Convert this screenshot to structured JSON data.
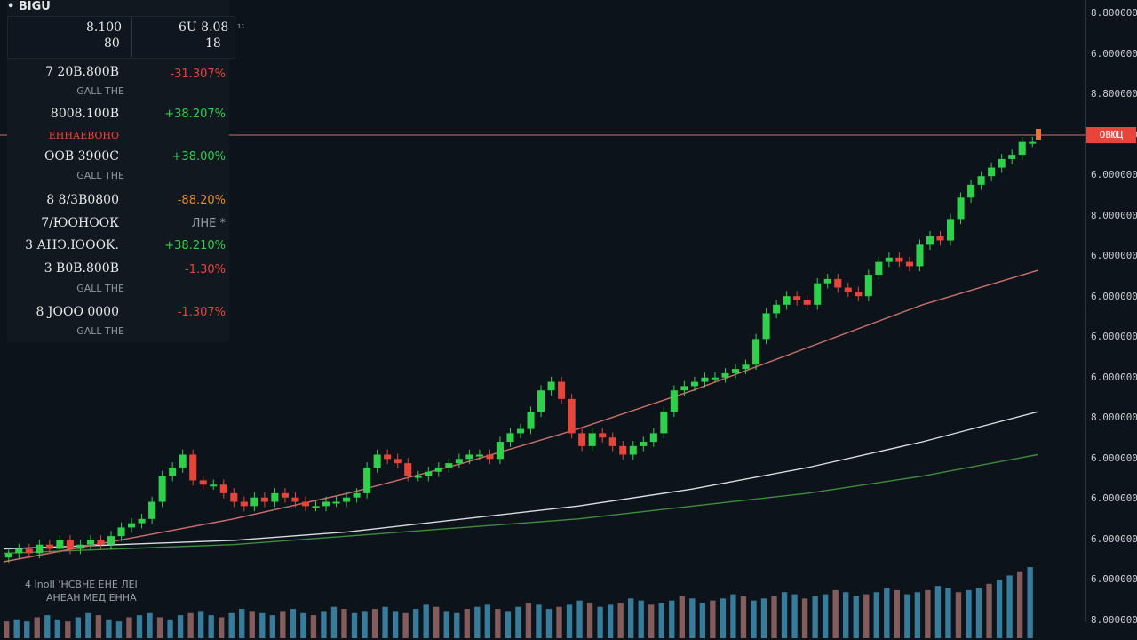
{
  "header": {
    "top_left": "• BIGU",
    "col1_a": "8.100",
    "col1_b": "80",
    "col2_a": "6U 8.08",
    "col2_b": "18",
    "marker": "¹¹"
  },
  "watchlist": [
    {
      "price": "7 20B.800B",
      "change": "-31.307%",
      "dir": "neg",
      "sub": "GALL ТНЕ"
    },
    {
      "price": "8008.100B",
      "change": "+38.207%",
      "dir": "pos",
      "sub": ""
    },
    {
      "price": "",
      "change": "",
      "dir": "neg",
      "sub": "",
      "label": "ЕННАЕВОНО"
    },
    {
      "price": "OOB 3900C",
      "change": "+38.00%",
      "dir": "pos",
      "sub": "GALL ТНЕ"
    },
    {
      "price": "8 8/3B0800",
      "change": "-88.20%",
      "dir": "org",
      "sub": ""
    },
    {
      "price": "7/ЮОНООК",
      "change": "ЛНЕ *",
      "dir": "ghost",
      "sub": ""
    },
    {
      "price": "3 АНЭ.ЮООK.",
      "change": "+38.210%",
      "dir": "pos",
      "sub": ""
    },
    {
      "price": "3 B0B.800B",
      "change": "-1.30%",
      "dir": "neg",
      "sub": "GALL ТНЕ"
    },
    {
      "price": "8 ЈООО 0000",
      "change": "-1.307%",
      "dir": "neg",
      "sub": "GALL ТНЕ"
    }
  ],
  "annotation": {
    "line1": "4 ІnоII 'НСВНЕ ЕНЕ ЛЕI",
    "line2": "АНЕАН МЕД ЕННА"
  },
  "price_tag": "ОВЮЦ",
  "y_axis_labels": [
    "8.800000",
    "6.000000",
    "8.800000",
    "6.000000",
    "6.000000",
    "8.000000",
    "6.000000",
    "6.000000",
    "6.000000",
    "6.000000",
    "8.000000",
    "6.000000",
    "6.000000",
    "6.000000",
    "6.000000",
    "8.000000"
  ],
  "colors": {
    "background": "#0d131b",
    "up": "#2fd04b",
    "down": "#e8453a",
    "ma_fast": "#c9716a",
    "ma_mid": "#d9dde2",
    "ma_slow": "#3e8d3c",
    "volume": "#3f8fb0"
  },
  "chart_data": {
    "type": "candlestick",
    "title": "",
    "xlabel": "",
    "ylabel": "",
    "grid": false,
    "ylim": [
      0,
      100
    ],
    "close": [
      2,
      3,
      2,
      4,
      3,
      5,
      3,
      4,
      5,
      4,
      6,
      8,
      9,
      10,
      14,
      20,
      22,
      25,
      19,
      18,
      18,
      16,
      14,
      13,
      15,
      14,
      16,
      15,
      14,
      13,
      13,
      14,
      14,
      15,
      16,
      22,
      25,
      24,
      23,
      20,
      20,
      21,
      22,
      23,
      24,
      25,
      25,
      24,
      28,
      30,
      31,
      35,
      40,
      42,
      38,
      30,
      27,
      30,
      29,
      27,
      25,
      27,
      28,
      30,
      35,
      40,
      41,
      42,
      43,
      43,
      44,
      45,
      46,
      52,
      58,
      60,
      62,
      61,
      60,
      65,
      66,
      64,
      63,
      62,
      67,
      70,
      71,
      70,
      69,
      74,
      76,
      75,
      80,
      85,
      88,
      90,
      92,
      94,
      95,
      98,
      98
    ],
    "ma_fast": [
      0,
      5,
      10,
      16,
      23,
      31,
      40,
      50,
      60,
      68
    ],
    "ma_mid": [
      3,
      4,
      5,
      7,
      10,
      13,
      17,
      22,
      28,
      35
    ],
    "ma_slow": [
      2,
      3,
      4,
      6,
      8,
      10,
      13,
      16,
      20,
      25
    ],
    "volume": [
      8,
      9,
      8,
      10,
      11,
      9,
      8,
      10,
      12,
      11,
      9,
      8,
      10,
      11,
      12,
      10,
      9,
      11,
      12,
      13,
      11,
      10,
      12,
      14,
      13,
      12,
      11,
      13,
      14,
      12,
      11,
      13,
      15,
      14,
      12,
      13,
      14,
      15,
      13,
      12,
      14,
      16,
      15,
      13,
      12,
      14,
      15,
      16,
      14,
      13,
      15,
      17,
      16,
      14,
      15,
      16,
      18,
      17,
      15,
      16,
      17,
      19,
      18,
      16,
      17,
      18,
      20,
      19,
      17,
      18,
      19,
      21,
      20,
      18,
      19,
      20,
      22,
      21,
      19,
      20,
      21,
      23,
      22,
      20,
      21,
      22,
      24,
      23,
      21,
      22,
      23,
      25,
      24,
      22,
      23,
      24,
      26,
      28,
      30,
      32,
      34
    ]
  }
}
